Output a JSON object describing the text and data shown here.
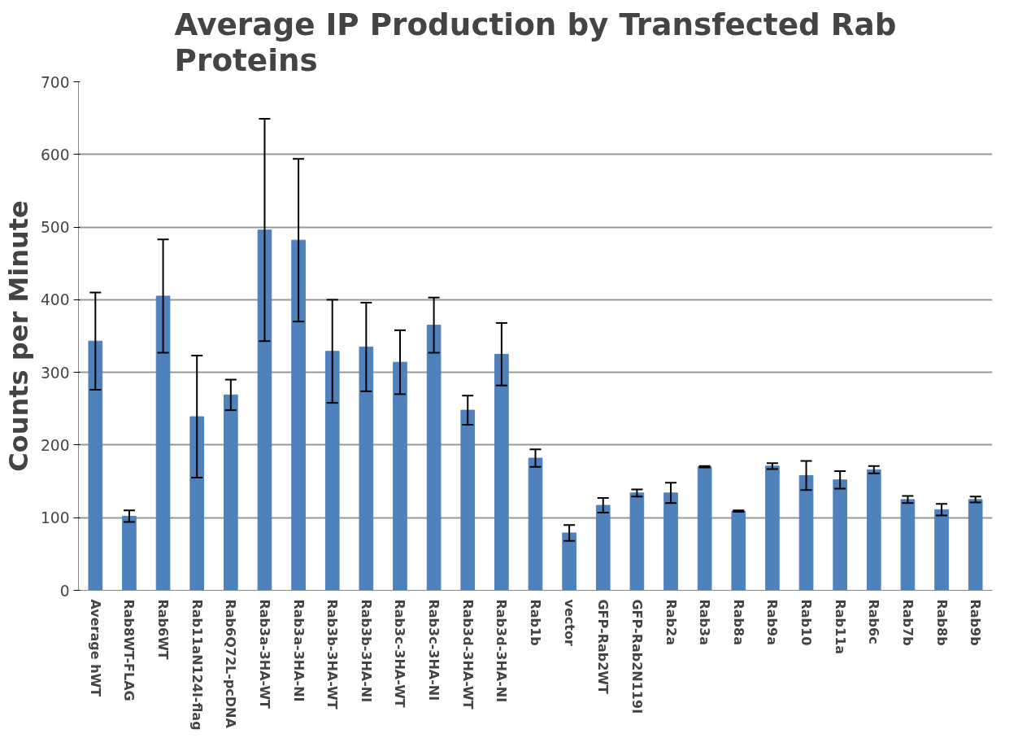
{
  "chart_data": {
    "type": "bar",
    "title": "Average IP Production by Transfected Rab\nProteins",
    "ylabel": "Counts per Minute",
    "categories": [
      "Average hWT",
      "Rab8WT-FLAG",
      "Rab6WT",
      "Rab11aN124I-flag",
      "Rab6Q72L-pcDNA",
      "Rab3a-3HA-WT",
      "Rab3a-3HA-NI",
      "Rab3b-3HA-WT",
      "Rab3b-3HA-NI",
      "Rab3c-3HA-WT",
      "Rab3c-3HA-NI",
      "Rab3d-3HA-WT",
      "Rab3d-3HA-NI",
      "Rab1b",
      "vector",
      "GFP-Rab2WT",
      "GFP-Rab2N119I",
      "Rab2a",
      "Rab3a",
      "Rab8a",
      "Rab9a",
      "Rab10",
      "Rab11a",
      "Rab6c",
      "Rab7b",
      "Rab8b",
      "Rab9b"
    ],
    "values": [
      343,
      102,
      405,
      239,
      269,
      496,
      482,
      329,
      335,
      314,
      365,
      248,
      325,
      182,
      79,
      117,
      134,
      134,
      170,
      109,
      171,
      158,
      152,
      166,
      125,
      111,
      125
    ],
    "errors": [
      67,
      8,
      78,
      84,
      21,
      153,
      112,
      71,
      61,
      44,
      38,
      20,
      43,
      12,
      11,
      10,
      5,
      14,
      1,
      1,
      4,
      20,
      12,
      5,
      5,
      8,
      4
    ],
    "color": "#4f81bd",
    "ylim": [
      0,
      700
    ],
    "yticks": [
      0,
      100,
      200,
      300,
      400,
      500,
      600,
      700
    ],
    "grid": "y"
  }
}
